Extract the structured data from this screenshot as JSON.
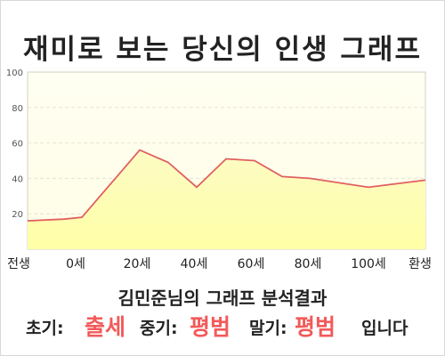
{
  "title": "재미로 보는 당신의 인생 그래프",
  "subtitle": "김민준님의 그래프 분석결과",
  "verdict": {
    "early_label": "초기:",
    "early_value": "출세",
    "mid_label": "중기:",
    "mid_value": "평범",
    "late_label": "말기:",
    "late_value": "평범",
    "suffix": "입니다"
  },
  "colors": {
    "line": "#e06060",
    "fill_top": "#fdfbd2",
    "fill_bottom": "#ffffaa",
    "highlight": "#f25a5a"
  },
  "chart_data": {
    "type": "area",
    "x_labels": [
      "전생",
      "0세",
      "20세",
      "40세",
      "60세",
      "80세",
      "100세",
      "환생"
    ],
    "points": [
      {
        "x": "전생",
        "y": 16
      },
      {
        "x": "0세",
        "y": 17
      },
      {
        "x": "0세",
        "y": 18
      },
      {
        "x": "20세",
        "y": 56
      },
      {
        "x": "30세",
        "y": 49
      },
      {
        "x": "40세",
        "y": 35
      },
      {
        "x": "50세",
        "y": 51
      },
      {
        "x": "60세",
        "y": 50
      },
      {
        "x": "70세",
        "y": 41
      },
      {
        "x": "80세",
        "y": 40
      },
      {
        "x": "100세",
        "y": 35
      },
      {
        "x": "환생",
        "y": 39
      }
    ],
    "yticks": [
      20,
      40,
      60,
      80,
      100
    ],
    "ylim": [
      0,
      100
    ],
    "grid": true,
    "legend": "none"
  }
}
